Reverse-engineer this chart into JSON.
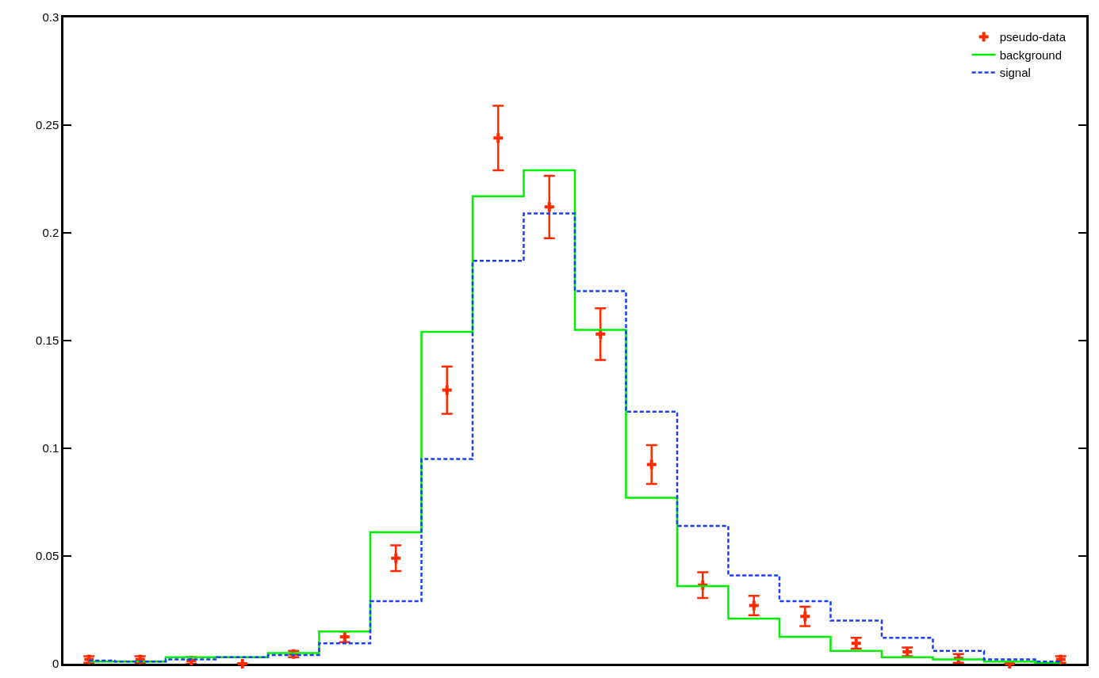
{
  "chart_data": {
    "type": "step",
    "categories": [
      null,
      null,
      null,
      null,
      null,
      null,
      null,
      null,
      null,
      null,
      null,
      null,
      null,
      null,
      null,
      null,
      null,
      null,
      null,
      null
    ],
    "series": [
      {
        "name": "pseudo-data",
        "type": "scatter",
        "marker": "cross",
        "color": "#ff2a00",
        "values": [
          0.002,
          0.002,
          0.0015,
          0,
          0.0045,
          0.0125,
          0.049,
          0.127,
          0.244,
          0.212,
          0.153,
          0.0925,
          0.0365,
          0.027,
          0.022,
          0.0095,
          0.0055,
          0.0025,
          0,
          0.002
        ],
        "errors": [
          0.0015,
          0.0015,
          0.0015,
          null,
          0.0015,
          0.0025,
          0.006,
          0.011,
          0.015,
          0.0145,
          0.012,
          0.009,
          0.006,
          0.0045,
          0.0045,
          0.0025,
          0.002,
          0.002,
          null,
          0.0015
        ]
      },
      {
        "name": "background",
        "color": "#00ee00",
        "line_style": "solid",
        "values": [
          0.001,
          0.001,
          0.003,
          0.003,
          0.005,
          0.015,
          0.061,
          0.154,
          0.217,
          0.229,
          0.155,
          0.077,
          0.036,
          0.021,
          0.0125,
          0.006,
          0.003,
          0.002,
          0.001,
          0.0005
        ]
      },
      {
        "name": "signal",
        "color": "#1a3cff",
        "line_style": "dashed",
        "values": [
          0.0015,
          0.001,
          0.002,
          0.003,
          0.004,
          0.0095,
          0.029,
          0.095,
          0.187,
          0.209,
          0.173,
          0.117,
          0.064,
          0.041,
          0.029,
          0.02,
          0.012,
          0.006,
          0.002,
          0.001
        ]
      }
    ],
    "ylim": [
      0,
      0.3
    ],
    "yticks": [
      0,
      0.05,
      0.1,
      0.15,
      0.2,
      0.25,
      0.3
    ],
    "legend": "top right",
    "tick_labels": "y"
  }
}
